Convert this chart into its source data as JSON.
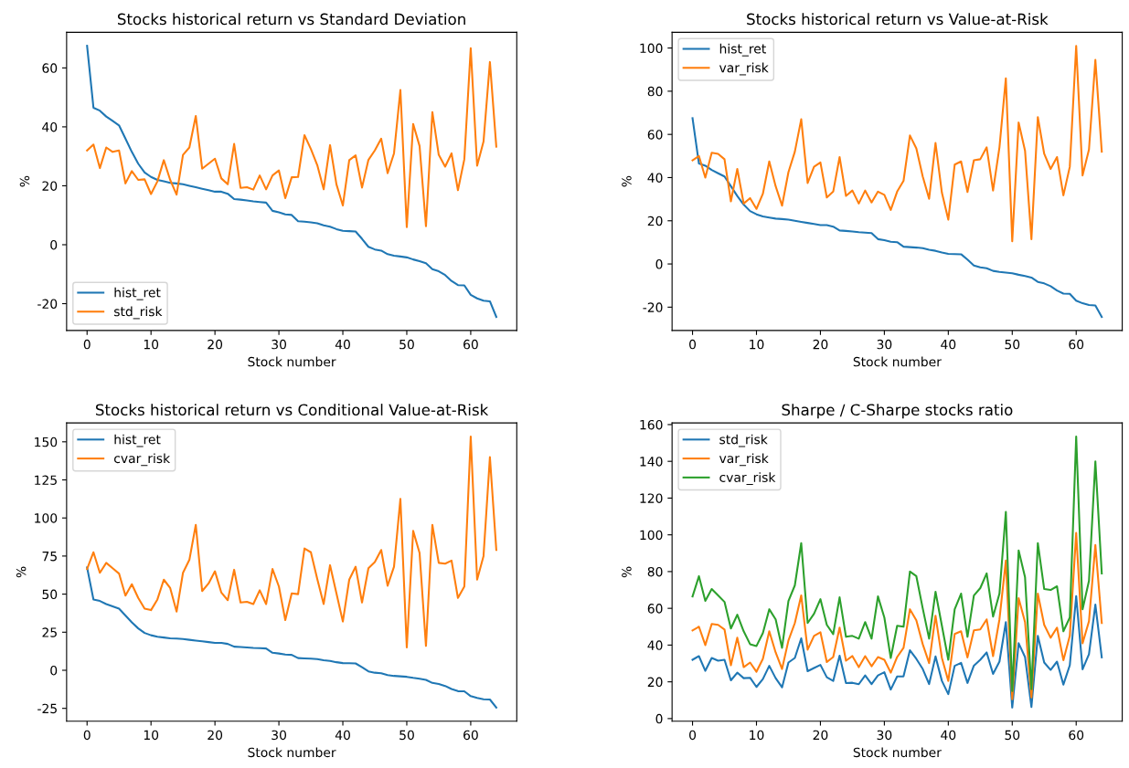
{
  "chart_data": [
    {
      "type": "line",
      "title": "Stocks historical return vs Standard Deviation",
      "xlabel": "Stock number",
      "ylabel": "%",
      "legend": "lower left",
      "x": [
        0,
        1,
        2,
        3,
        4,
        5,
        6,
        7,
        8,
        9,
        10,
        11,
        12,
        13,
        14,
        15,
        16,
        17,
        18,
        19,
        20,
        21,
        22,
        23,
        24,
        25,
        26,
        27,
        28,
        29,
        30,
        31,
        32,
        33,
        34,
        35,
        36,
        37,
        38,
        39,
        40,
        41,
        42,
        43,
        44,
        45,
        46,
        47,
        48,
        49,
        50,
        51,
        52,
        53,
        54,
        55,
        56,
        57,
        58,
        59,
        60,
        61,
        62,
        63,
        64
      ],
      "xlim": [
        -3.2,
        67.2
      ],
      "xticks": [
        0,
        10,
        20,
        30,
        40,
        50,
        60
      ],
      "ylim": [
        -29.1,
        72.1
      ],
      "yticks": [
        -20,
        0,
        20,
        40,
        60
      ],
      "series": [
        {
          "name": "hist_ret",
          "color": "#1f77b4",
          "values": [
            67.5,
            46.5,
            45.5,
            43.5,
            42,
            40.5,
            36,
            31.5,
            27.5,
            24.5,
            23,
            22,
            21.5,
            21,
            20.8,
            20.5,
            20,
            19.5,
            19,
            18.5,
            18,
            18,
            17.3,
            15.5,
            15.3,
            15,
            14.7,
            14.5,
            14.3,
            11.5,
            11,
            10.3,
            10.1,
            8,
            7.8,
            7.6,
            7.3,
            6.6,
            6.1,
            5.3,
            4.7,
            4.6,
            4.5,
            2,
            -0.7,
            -1.6,
            -2,
            -3.2,
            -3.7,
            -4,
            -4.3,
            -5,
            -5.6,
            -6.3,
            -8.3,
            -9,
            -10.3,
            -12.3,
            -13.7,
            -13.8,
            -17,
            -18.2,
            -19,
            -19.2,
            -24.5
          ]
        },
        {
          "name": "std_risk",
          "color": "#ff7f0e",
          "values": [
            32,
            34,
            26,
            33,
            31.5,
            32,
            20.8,
            25,
            22,
            22.2,
            17.2,
            21.5,
            28.7,
            22,
            17,
            30.5,
            33,
            43.7,
            25.8,
            27.5,
            29.2,
            22.5,
            20.5,
            34.2,
            19.3,
            19.5,
            18.7,
            23.5,
            18.8,
            23.5,
            25.2,
            15.8,
            22.9,
            23,
            37.2,
            32.5,
            27,
            18.8,
            33.8,
            20.5,
            13.3,
            28.7,
            30.3,
            19.4,
            28.8,
            32,
            36,
            24.3,
            31,
            52.5,
            6,
            41,
            33.5,
            6.3,
            45,
            30.5,
            26.5,
            31,
            18.5,
            29,
            66.7,
            26.8,
            35,
            62,
            33.3
          ]
        }
      ]
    },
    {
      "type": "line",
      "title": "Stocks historical return vs Value-at-Risk",
      "xlabel": "Stock number",
      "ylabel": "%",
      "legend": "upper left",
      "x": [
        0,
        1,
        2,
        3,
        4,
        5,
        6,
        7,
        8,
        9,
        10,
        11,
        12,
        13,
        14,
        15,
        16,
        17,
        18,
        19,
        20,
        21,
        22,
        23,
        24,
        25,
        26,
        27,
        28,
        29,
        30,
        31,
        32,
        33,
        34,
        35,
        36,
        37,
        38,
        39,
        40,
        41,
        42,
        43,
        44,
        45,
        46,
        47,
        48,
        49,
        50,
        51,
        52,
        53,
        54,
        55,
        56,
        57,
        58,
        59,
        60,
        61,
        62,
        63,
        64
      ],
      "xlim": [
        -3.2,
        67.2
      ],
      "xticks": [
        0,
        10,
        20,
        30,
        40,
        50,
        60
      ],
      "ylim": [
        -30.8,
        107.3
      ],
      "yticks": [
        -20,
        0,
        20,
        40,
        60,
        80,
        100
      ],
      "series": [
        {
          "name": "hist_ret",
          "color": "#1f77b4",
          "values": [
            67.5,
            46.5,
            45.5,
            43.5,
            42,
            40.5,
            36,
            31.5,
            27.5,
            24.5,
            23,
            22,
            21.5,
            21,
            20.8,
            20.5,
            20,
            19.5,
            19,
            18.5,
            18,
            18,
            17.3,
            15.5,
            15.3,
            15,
            14.7,
            14.5,
            14.3,
            11.5,
            11,
            10.3,
            10.1,
            8,
            7.8,
            7.6,
            7.3,
            6.6,
            6.1,
            5.3,
            4.7,
            4.6,
            4.5,
            2,
            -0.7,
            -1.6,
            -2,
            -3.2,
            -3.7,
            -4,
            -4.3,
            -5,
            -5.6,
            -6.3,
            -8.3,
            -9,
            -10.3,
            -12.3,
            -13.7,
            -13.8,
            -17,
            -18.2,
            -19,
            -19.2,
            -24.5
          ]
        },
        {
          "name": "var_risk",
          "color": "#ff7f0e",
          "values": [
            48,
            50,
            40,
            51.5,
            51,
            48.5,
            29,
            44,
            28,
            30.5,
            25.5,
            32.5,
            47.5,
            36,
            27,
            42.5,
            52,
            67,
            37.5,
            45,
            47,
            30.8,
            33.5,
            49.5,
            31.5,
            34,
            28,
            34,
            28.5,
            33.5,
            32,
            25,
            33.5,
            38.5,
            59.5,
            53.5,
            40.5,
            30.2,
            56,
            33,
            20.5,
            46,
            47.5,
            33.3,
            48,
            48.5,
            54,
            34,
            54,
            86,
            10.5,
            65.5,
            52.5,
            11.5,
            68,
            51,
            44,
            49.5,
            31.8,
            45,
            101,
            41,
            53,
            94.5,
            52
          ]
        }
      ]
    },
    {
      "type": "line",
      "title": "Stocks historical return vs Conditional Value-at-Risk",
      "xlabel": "Stock number",
      "ylabel": "%",
      "legend": "upper left",
      "x": [
        0,
        1,
        2,
        3,
        4,
        5,
        6,
        7,
        8,
        9,
        10,
        11,
        12,
        13,
        14,
        15,
        16,
        17,
        18,
        19,
        20,
        21,
        22,
        23,
        24,
        25,
        26,
        27,
        28,
        29,
        30,
        31,
        32,
        33,
        34,
        35,
        36,
        37,
        38,
        39,
        40,
        41,
        42,
        43,
        44,
        45,
        46,
        47,
        48,
        49,
        50,
        51,
        52,
        53,
        54,
        55,
        56,
        57,
        58,
        59,
        60,
        61,
        62,
        63,
        64
      ],
      "xlim": [
        -3.2,
        67.2
      ],
      "xticks": [
        0,
        10,
        20,
        30,
        40,
        50,
        60
      ],
      "ylim": [
        -33.4,
        162.4
      ],
      "yticks": [
        -25,
        0,
        25,
        50,
        75,
        100,
        125,
        150
      ],
      "series": [
        {
          "name": "hist_ret",
          "color": "#1f77b4",
          "values": [
            67.5,
            46.5,
            45.5,
            43.5,
            42,
            40.5,
            36,
            31.5,
            27.5,
            24.5,
            23,
            22,
            21.5,
            21,
            20.8,
            20.5,
            20,
            19.5,
            19,
            18.5,
            18,
            18,
            17.3,
            15.5,
            15.3,
            15,
            14.7,
            14.5,
            14.3,
            11.5,
            11,
            10.3,
            10.1,
            8,
            7.8,
            7.6,
            7.3,
            6.6,
            6.1,
            5.3,
            4.7,
            4.6,
            4.5,
            2,
            -0.7,
            -1.6,
            -2,
            -3.2,
            -3.7,
            -4,
            -4.3,
            -5,
            -5.6,
            -6.3,
            -8.3,
            -9,
            -10.3,
            -12.3,
            -13.7,
            -13.8,
            -17,
            -18.2,
            -19,
            -19.2,
            -24.5
          ]
        },
        {
          "name": "cvar_risk",
          "color": "#ff7f0e",
          "values": [
            66.5,
            77.5,
            64,
            70.5,
            67,
            63.5,
            49,
            56.5,
            47.5,
            40.5,
            39.5,
            46.5,
            59.5,
            54,
            38.5,
            64,
            72.5,
            95.5,
            52,
            57,
            65,
            51,
            46,
            66,
            44.5,
            45,
            43.5,
            52.5,
            43.5,
            66.5,
            55,
            33,
            50.5,
            50,
            80,
            77.5,
            60,
            43.5,
            69,
            50.5,
            32,
            59.5,
            68,
            44.5,
            67,
            71,
            79,
            55.5,
            68,
            112.5,
            15,
            91.5,
            77,
            16,
            95.5,
            70.5,
            70,
            72,
            47.5,
            55,
            153.5,
            59.5,
            75,
            140,
            79
          ]
        }
      ]
    },
    {
      "type": "line",
      "title": "Sharpe / C-Sharpe stocks ratio",
      "xlabel": "Stock number",
      "ylabel": "%",
      "legend": "upper left",
      "x": [
        0,
        1,
        2,
        3,
        4,
        5,
        6,
        7,
        8,
        9,
        10,
        11,
        12,
        13,
        14,
        15,
        16,
        17,
        18,
        19,
        20,
        21,
        22,
        23,
        24,
        25,
        26,
        27,
        28,
        29,
        30,
        31,
        32,
        33,
        34,
        35,
        36,
        37,
        38,
        39,
        40,
        41,
        42,
        43,
        44,
        45,
        46,
        47,
        48,
        49,
        50,
        51,
        52,
        53,
        54,
        55,
        56,
        57,
        58,
        59,
        60,
        61,
        62,
        63,
        64
      ],
      "xlim": [
        -3.2,
        67.2
      ],
      "xticks": [
        0,
        10,
        20,
        30,
        40,
        50,
        60
      ],
      "ylim": [
        -1.4,
        160.9
      ],
      "yticks": [
        0,
        20,
        40,
        60,
        80,
        100,
        120,
        140,
        160
      ],
      "series": [
        {
          "name": "std_risk",
          "color": "#1f77b4",
          "values": [
            32,
            34,
            26,
            33,
            31.5,
            32,
            20.8,
            25,
            22,
            22.2,
            17.2,
            21.5,
            28.7,
            22,
            17,
            30.5,
            33,
            43.7,
            25.8,
            27.5,
            29.2,
            22.5,
            20.5,
            34.2,
            19.3,
            19.5,
            18.7,
            23.5,
            18.8,
            23.5,
            25.2,
            15.8,
            22.9,
            23,
            37.2,
            32.5,
            27,
            18.8,
            33.8,
            20.5,
            13.3,
            28.7,
            30.3,
            19.4,
            28.8,
            32,
            36,
            24.3,
            31,
            52.5,
            6,
            41,
            33.5,
            6.3,
            45,
            30.5,
            26.5,
            31,
            18.5,
            29,
            66.7,
            26.8,
            35,
            62,
            33.3
          ]
        },
        {
          "name": "var_risk",
          "color": "#ff7f0e",
          "values": [
            48,
            50,
            40,
            51.5,
            51,
            48.5,
            29,
            44,
            28,
            30.5,
            25.5,
            32.5,
            47.5,
            36,
            27,
            42.5,
            52,
            67,
            37.5,
            45,
            47,
            30.8,
            33.5,
            49.5,
            31.5,
            34,
            28,
            34,
            28.5,
            33.5,
            32,
            25,
            33.5,
            38.5,
            59.5,
            53.5,
            40.5,
            30.2,
            56,
            33,
            20.5,
            46,
            47.5,
            33.3,
            48,
            48.5,
            54,
            34,
            54,
            86,
            10.5,
            65.5,
            52.5,
            11.5,
            68,
            51,
            44,
            49.5,
            31.8,
            45,
            101,
            41,
            53,
            94.5,
            52
          ]
        },
        {
          "name": "cvar_risk",
          "color": "#2ca02c",
          "values": [
            66.5,
            77.5,
            64,
            70.5,
            67,
            63.5,
            49,
            56.5,
            47.5,
            40.5,
            39.5,
            46.5,
            59.5,
            54,
            38.5,
            64,
            72.5,
            95.5,
            52,
            57,
            65,
            51,
            46,
            66,
            44.5,
            45,
            43.5,
            52.5,
            43.5,
            66.5,
            55,
            33,
            50.5,
            50,
            80,
            77.5,
            60,
            43.5,
            69,
            50.5,
            32,
            59.5,
            68,
            44.5,
            67,
            71,
            79,
            55.5,
            68,
            112.5,
            15,
            91.5,
            77,
            16,
            95.5,
            70.5,
            70,
            72,
            47.5,
            55,
            153.5,
            59.5,
            75,
            140,
            79
          ]
        }
      ]
    }
  ]
}
